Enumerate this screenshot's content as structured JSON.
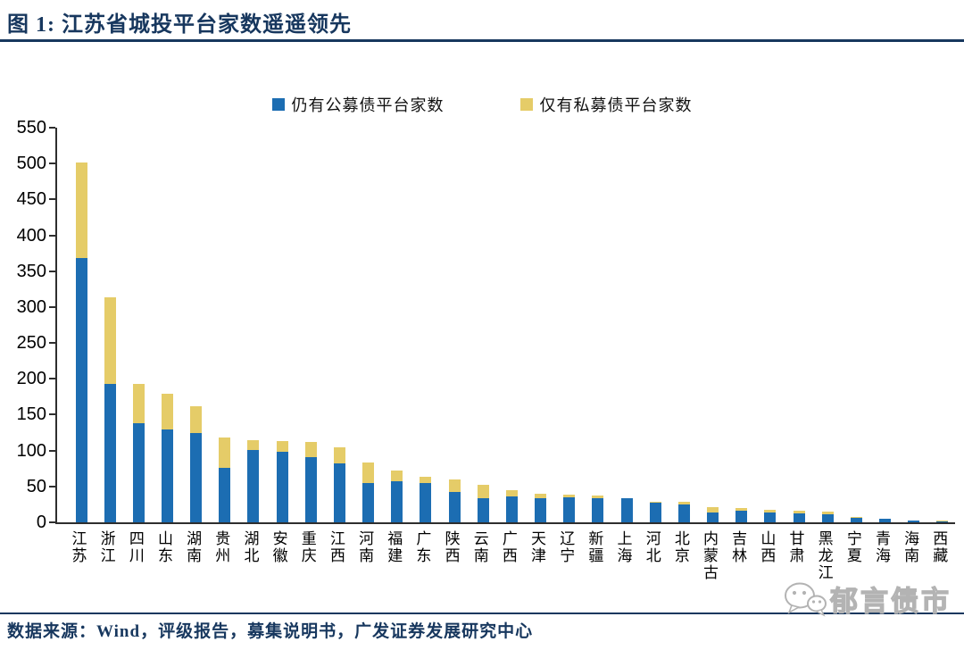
{
  "header": {
    "title": "图 1:  江苏省城投平台家数遥遥领先"
  },
  "source": {
    "label": "数据来源：Wind，评级报告，募集说明书，广发证券发展研究中心"
  },
  "watermark": {
    "text": "郁言债市",
    "icon": "wechat-icon"
  },
  "colors": {
    "public_blue": "#1C6DB2",
    "private_yellow": "#E5CC68",
    "title_navy": "#17375E",
    "axis": "#2E2E2E",
    "watermark_gray": "#B3B3B3"
  },
  "chart_data": {
    "type": "bar",
    "stacked": true,
    "title": "图 1: 江苏省城投平台家数遥遥领先",
    "xlabel": "",
    "ylabel": "",
    "ylim": [
      0,
      550
    ],
    "yticks": [
      0,
      50,
      100,
      150,
      200,
      250,
      300,
      350,
      400,
      450,
      500,
      550
    ],
    "grid": false,
    "legend_position": "top",
    "categories": [
      "江苏",
      "浙江",
      "四川",
      "山东",
      "湖南",
      "贵州",
      "湖北",
      "安徽",
      "重庆",
      "江西",
      "河南",
      "福建",
      "广东",
      "陕西",
      "云南",
      "广西",
      "天津",
      "辽宁",
      "新疆",
      "上海",
      "河北",
      "北京",
      "内蒙古",
      "吉林",
      "山西",
      "甘肃",
      "黑龙江",
      "宁夏",
      "青海",
      "海南",
      "西藏"
    ],
    "series": [
      {
        "name": "仍有公募债平台家数",
        "color_key": "public_blue",
        "values": [
          368,
          193,
          138,
          129,
          125,
          76,
          101,
          98,
          91,
          82,
          55,
          57,
          55,
          42,
          33,
          36,
          34,
          35,
          34,
          34,
          28,
          25,
          14,
          16,
          14,
          12,
          11,
          6,
          5,
          3,
          1
        ]
      },
      {
        "name": "仅有私募债平台家数",
        "color_key": "private_yellow",
        "values": [
          133,
          120,
          55,
          50,
          37,
          42,
          14,
          15,
          21,
          23,
          29,
          15,
          9,
          18,
          19,
          9,
          6,
          3,
          3,
          0,
          1,
          4,
          7,
          4,
          4,
          4,
          4,
          2,
          0,
          0,
          1
        ]
      }
    ]
  }
}
